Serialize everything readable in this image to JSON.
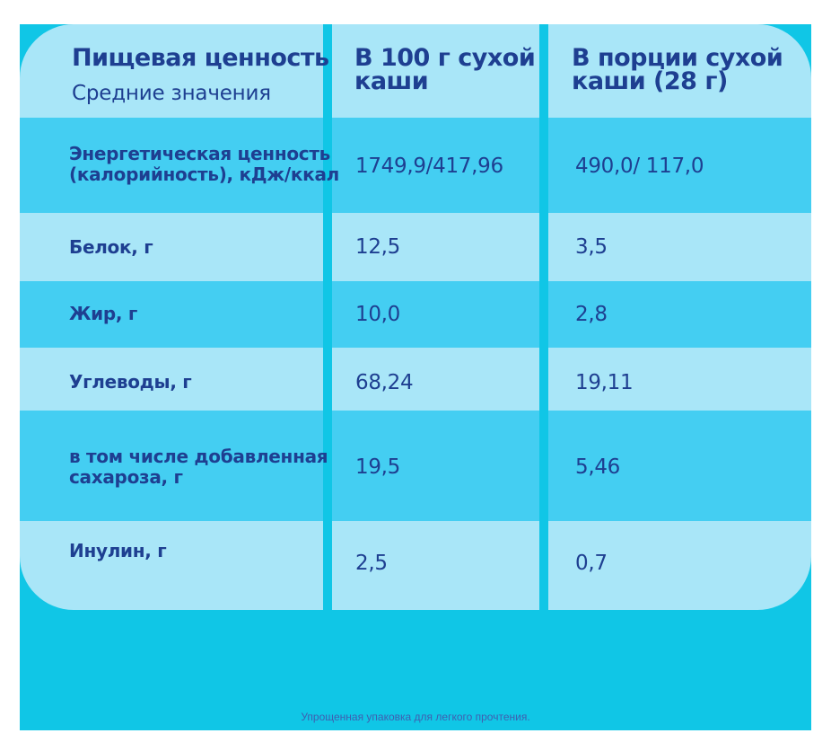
{
  "header": {
    "title": "Пищевая ценность",
    "subtitle": "Средние значения",
    "col_100g": "В 100 г сухой\nкаши",
    "col_portion": "В  порции сухой\nкаши  (28 г)"
  },
  "rows": [
    {
      "label": "Энергетическая ценность\n(калорийность), кДж/ккал",
      "per100": "1749,9/417,96",
      "portion": "490,0/ 117,0"
    },
    {
      "label": "Белок, г",
      "per100": "12,5",
      "portion": "3,5"
    },
    {
      "label": "Жир, г",
      "per100": "10,0",
      "portion": "2,8"
    },
    {
      "label": "Углеводы, г",
      "per100": "68,24",
      "portion": "19,11"
    },
    {
      "label": "в том числе добавленная\nсахароза, г",
      "per100": "19,5",
      "portion": "5,46"
    },
    {
      "label": "Инулин, г",
      "per100": "2,5",
      "portion": "0,7"
    }
  ],
  "footnote": "Упрощенная упаковка для легкого прочтения.",
  "colors": {
    "panel": "#10c6e6",
    "row_light": "#a9e6f8",
    "row_dark": "#44cef2",
    "text": "#1e3f91"
  }
}
